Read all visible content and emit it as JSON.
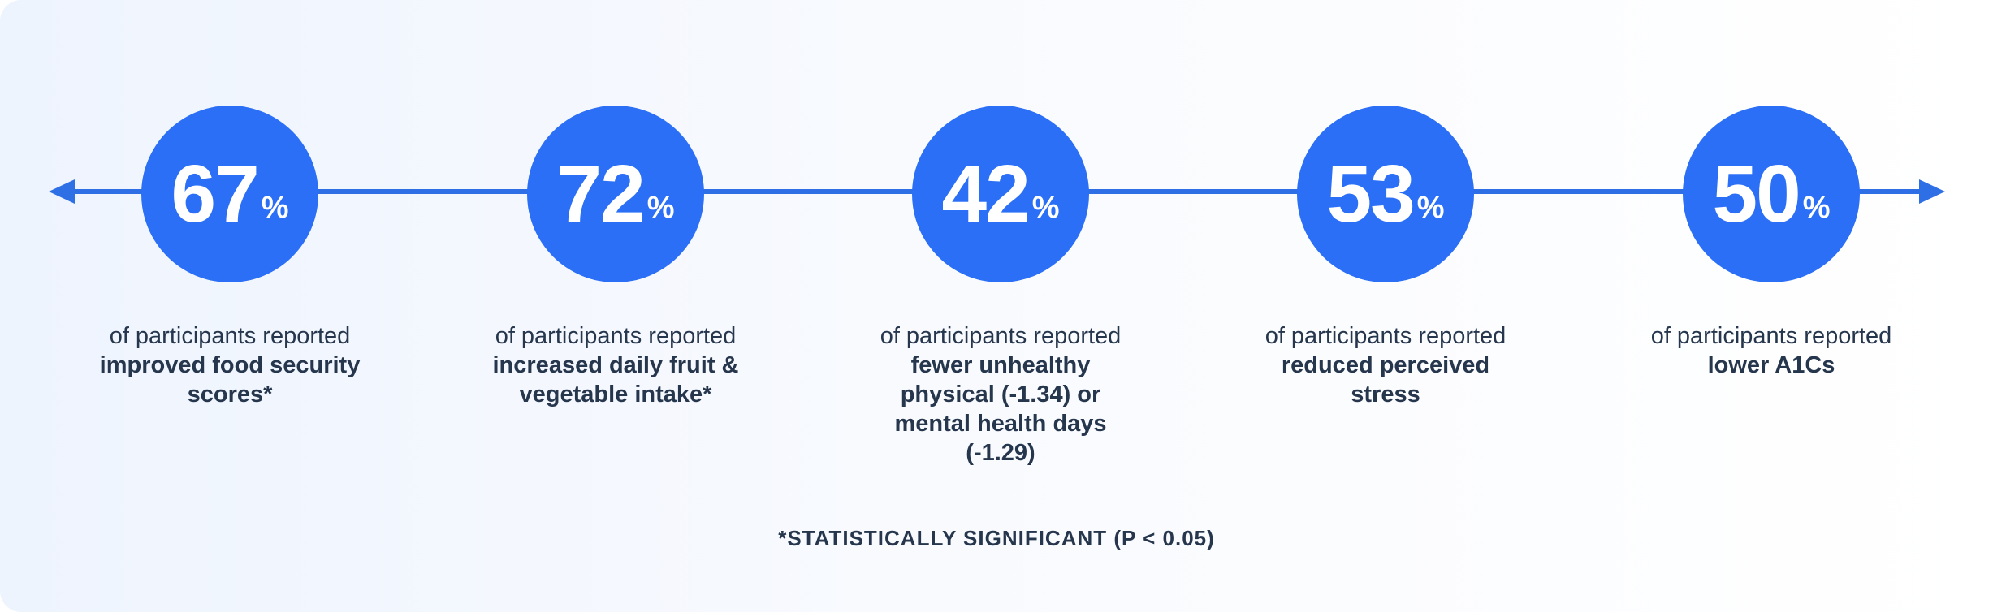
{
  "stats": [
    {
      "value": "67",
      "unit": "%",
      "lead": "of participants reported",
      "highlight": "improved food security scores*"
    },
    {
      "value": "72",
      "unit": "%",
      "lead": "of participants reported",
      "highlight": "increased daily fruit & vegetable intake*"
    },
    {
      "value": "42",
      "unit": "%",
      "lead": "of participants reported",
      "highlight": "fewer unhealthy physical (-1.34) or mental health days (-1.29)"
    },
    {
      "value": "53",
      "unit": "%",
      "lead": "of participants reported",
      "highlight": "reduced perceived stress"
    },
    {
      "value": "50",
      "unit": "%",
      "lead": "of participants reported",
      "highlight": "lower A1Cs"
    }
  ],
  "footnote": "*STATISTICALLY SIGNIFICANT (P < 0.05)",
  "colors": {
    "accent": "#2a6ff5",
    "line": "#2f6fe6",
    "text": "#26364d",
    "background": "#eef4fe"
  }
}
